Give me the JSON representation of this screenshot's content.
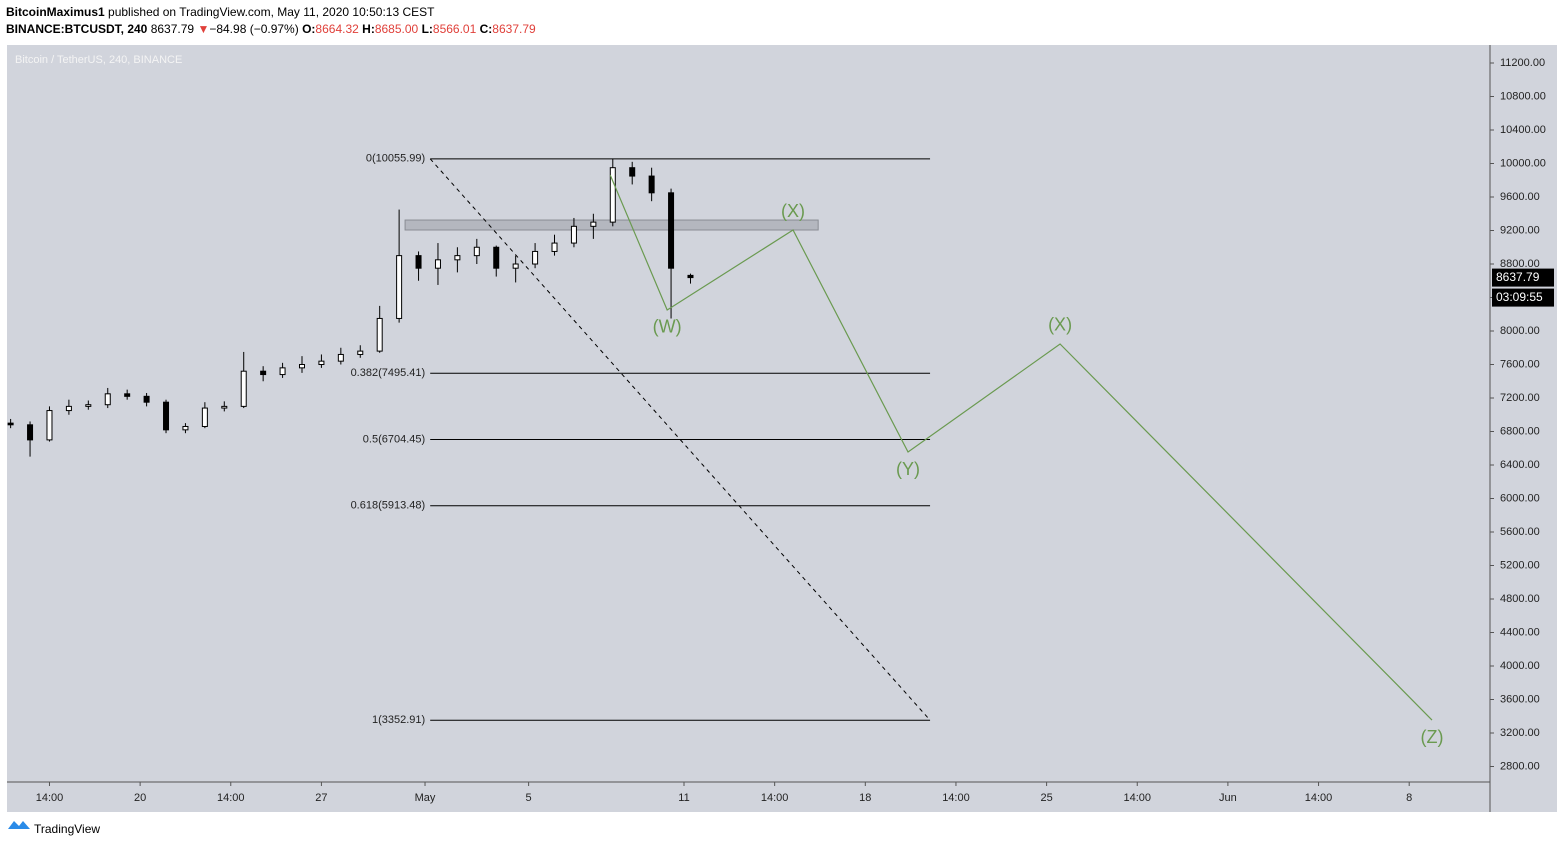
{
  "header": {
    "author": "BitcoinMaximus1",
    "published": " published on TradingView.com, May 11, 2020 10:50:13 CEST",
    "symbol": "BINANCE:BTCUSDT, 240",
    "price": "8637.79",
    "arrow": "▼",
    "change": "−84.98 (−0.97%)",
    "o_label": "O:",
    "o": "8664.32",
    "h_label": "H:",
    "h": "8685.00",
    "l_label": "L:",
    "l": "8566.01",
    "c_label": "C:",
    "c": "8637.79"
  },
  "footer": {
    "brand": "TradingView"
  },
  "chart_data": {
    "type": "candlestick",
    "title": "Bitcoin / TetherUS, 240, BINANCE",
    "x": [
      15.0,
      15.75,
      16.5,
      17.25,
      18.0,
      18.75,
      19.5,
      20.25,
      21.0,
      21.75,
      22.5,
      23.25,
      24.0,
      24.75,
      25.5,
      26.25,
      27.0,
      27.75,
      28.5,
      29.25,
      30.0,
      30.75,
      31.5,
      32.25,
      33.0,
      33.75,
      34.5,
      35.25,
      36.0,
      36.75,
      37.5,
      38.25,
      39.0,
      39.75,
      40.5,
      41.25
    ],
    "open": [
      6900,
      6880,
      6700,
      7050,
      7100,
      7120,
      7250,
      7220,
      7150,
      6820,
      6860,
      7080,
      7100,
      7520,
      7480,
      7560,
      7600,
      7640,
      7720,
      7760,
      8150,
      8900,
      8750,
      8850,
      8900,
      9000,
      8750,
      8800,
      8950,
      9050,
      9250,
      9300,
      9950,
      9850,
      9650,
      8664.32
    ],
    "high": [
      6950,
      6920,
      7100,
      7180,
      7170,
      7320,
      7300,
      7260,
      7180,
      6900,
      7150,
      7160,
      7750,
      7580,
      7620,
      7700,
      7720,
      7800,
      7830,
      8300,
      9450,
      8950,
      9050,
      9000,
      9100,
      9020,
      8900,
      9050,
      9150,
      9350,
      9400,
      10060,
      10020,
      9950,
      9700,
      8685
    ],
    "low": [
      6840,
      6500,
      6680,
      7000,
      7060,
      7080,
      7180,
      7100,
      6780,
      6780,
      6840,
      7040,
      7080,
      7400,
      7440,
      7500,
      7560,
      7600,
      7680,
      7740,
      8100,
      8600,
      8550,
      8700,
      8800,
      8650,
      8580,
      8750,
      8900,
      9000,
      9100,
      9250,
      9750,
      9550,
      8150,
      8566.01
    ],
    "close": [
      6880,
      6700,
      7050,
      7100,
      7120,
      7250,
      7220,
      7150,
      6820,
      6860,
      7080,
      7100,
      7520,
      7480,
      7560,
      7600,
      7640,
      7720,
      7760,
      8150,
      8900,
      8750,
      8850,
      8900,
      9000,
      8750,
      8800,
      8950,
      9050,
      9250,
      9300,
      9950,
      9850,
      9650,
      8750,
      8637.79
    ],
    "xlim": [
      14.86,
      72.12
    ],
    "ylim": [
      2615,
      11415
    ],
    "xticks": [
      {
        "value": 16.5,
        "label": "14:00"
      },
      {
        "value": 20,
        "label": "20"
      },
      {
        "value": 23.5,
        "label": "14:00"
      },
      {
        "value": 27,
        "label": "27"
      },
      {
        "value": 31,
        "label": "May"
      },
      {
        "value": 35,
        "label": "5"
      },
      {
        "value": 41,
        "label": "11"
      },
      {
        "value": 44.5,
        "label": "14:00"
      },
      {
        "value": 48,
        "label": "18"
      },
      {
        "value": 51.5,
        "label": "14:00"
      },
      {
        "value": 55,
        "label": "25"
      },
      {
        "value": 58.5,
        "label": "14:00"
      },
      {
        "value": 62,
        "label": "Jun"
      },
      {
        "value": 65.5,
        "label": "14:00"
      },
      {
        "value": 69,
        "label": "8"
      }
    ],
    "yticks": [
      {
        "value": 2800,
        "label": "2800.00"
      },
      {
        "value": 3200,
        "label": "3200.00"
      },
      {
        "value": 3600,
        "label": "3600.00"
      },
      {
        "value": 4000,
        "label": "4000.00"
      },
      {
        "value": 4400,
        "label": "4400.00"
      },
      {
        "value": 4800,
        "label": "4800.00"
      },
      {
        "value": 5200,
        "label": "5200.00"
      },
      {
        "value": 5600,
        "label": "5600.00"
      },
      {
        "value": 6000,
        "label": "6000.00"
      },
      {
        "value": 6400,
        "label": "6400.00"
      },
      {
        "value": 6800,
        "label": "6800.00"
      },
      {
        "value": 7200,
        "label": "7200.00"
      },
      {
        "value": 7600,
        "label": "7600.00"
      },
      {
        "value": 8000,
        "label": "8000.00"
      },
      {
        "value": 8400,
        "label": "8400.00"
      },
      {
        "value": 8800,
        "label": "8800.00"
      },
      {
        "value": 9200,
        "label": "9200.00"
      },
      {
        "value": 9600,
        "label": "9600.00"
      },
      {
        "value": 10000,
        "label": "10000.00"
      },
      {
        "value": 10400,
        "label": "10400.00"
      },
      {
        "value": 10800,
        "label": "10800.00"
      },
      {
        "value": 11200,
        "label": "11200.00"
      }
    ],
    "last_price": 8637.79,
    "countdown": "03:09:55",
    "fib": {
      "x": [
        31.2,
        50.5
      ],
      "levels": [
        {
          "value": 10055.99,
          "label": "0(10055.99)"
        },
        {
          "value": 7495.41,
          "label": "0.382(7495.41)"
        },
        {
          "value": 6704.45,
          "label": "0.5(6704.45)"
        },
        {
          "value": 5913.48,
          "label": "0.618(5913.48)"
        },
        {
          "value": 3352.91,
          "label": "1(3352.91)"
        }
      ]
    },
    "zone": {
      "x": [
        30.23,
        46.18
      ],
      "y": [
        9206,
        9325
      ]
    },
    "wave": {
      "color": "#6a9a50",
      "x": [
        38.15,
        40.35,
        45.21,
        49.65,
        55.52,
        69.88
      ],
      "y": [
        9863,
        8251,
        9206,
        6555,
        7845,
        3355
      ],
      "labels": [
        null,
        "(W)",
        "(X)",
        "(Y)",
        "(X)",
        "(Z)"
      ]
    }
  }
}
